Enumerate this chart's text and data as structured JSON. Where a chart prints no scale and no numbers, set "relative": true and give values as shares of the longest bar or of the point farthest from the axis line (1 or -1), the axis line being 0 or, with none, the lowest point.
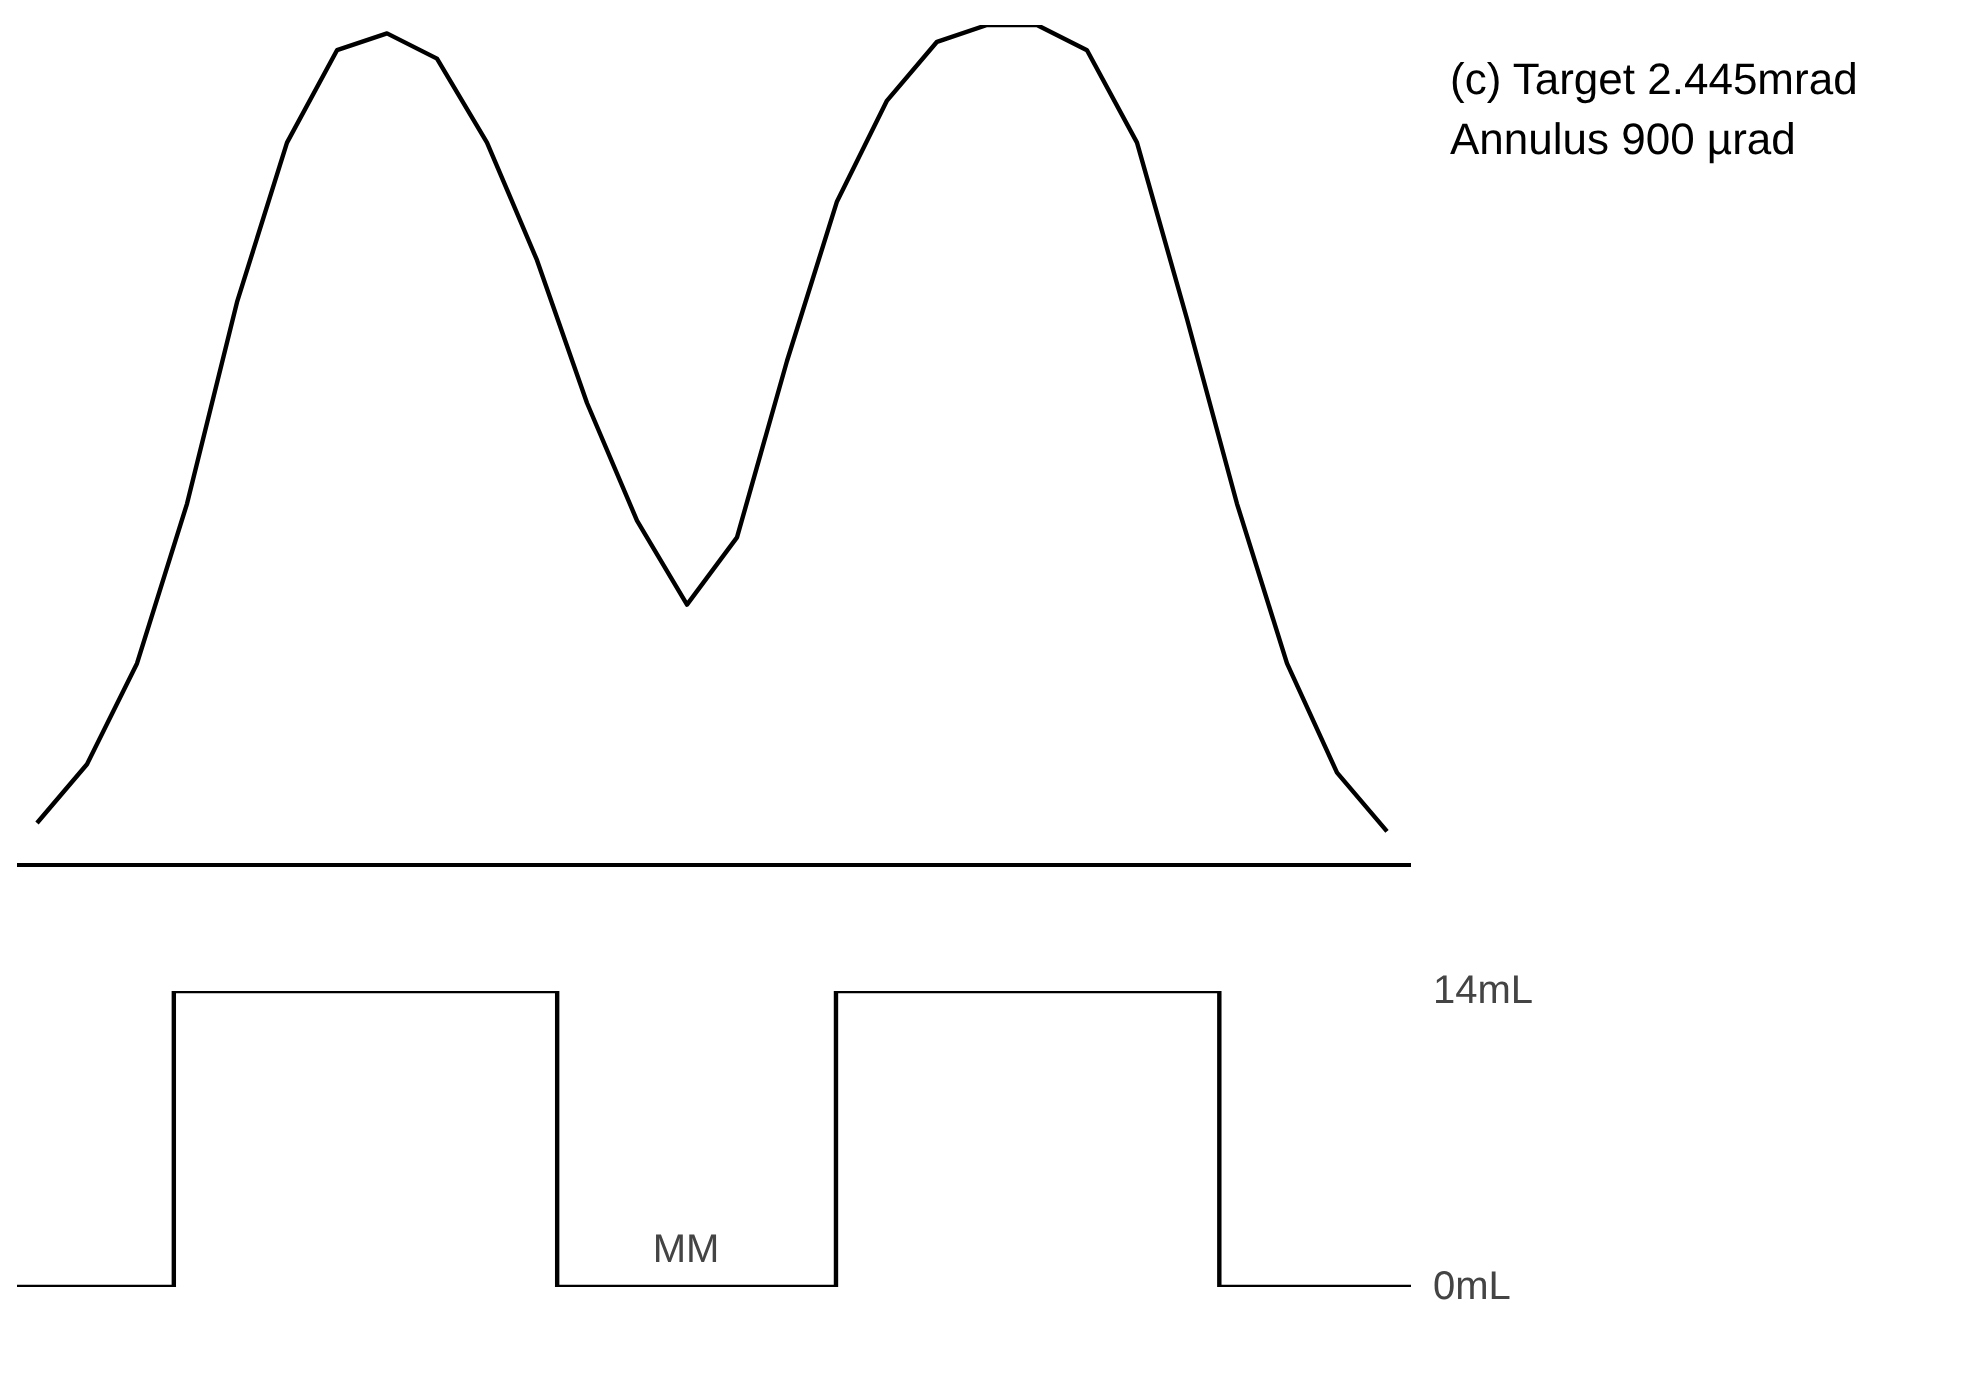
{
  "chart_data": [
    {
      "type": "line",
      "relative": true,
      "color": "#000000",
      "grid": false,
      "annotations": [
        "(c) Target  2.445mrad",
        "Annulus 900 µrad"
      ],
      "categories": [
        null,
        null,
        null,
        null,
        null,
        null,
        null,
        null,
        null,
        null,
        null,
        null,
        null,
        null,
        null,
        null,
        null,
        null,
        null,
        null,
        null,
        null,
        null,
        null,
        null,
        null,
        null,
        null
      ],
      "values": [
        0.05,
        0.12,
        0.24,
        0.43,
        0.67,
        0.86,
        0.97,
        0.99,
        0.96,
        0.86,
        0.72,
        0.55,
        0.41,
        0.31,
        0.39,
        0.6,
        0.79,
        0.91,
        0.98,
        1.0,
        1.0,
        0.97,
        0.86,
        0.65,
        0.43,
        0.24,
        0.11,
        0.04
      ]
    },
    {
      "type": "step",
      "color": "#000000",
      "grid": false,
      "annotations": [
        "MM"
      ],
      "ylim": [
        0,
        14
      ],
      "yticks": [
        {
          "value": 0,
          "label": "0mL"
        },
        {
          "value": 14,
          "label": "14mL"
        }
      ],
      "categories": [
        null,
        null,
        null,
        null,
        null,
        null,
        null,
        null,
        null,
        null,
        null,
        null,
        null,
        null,
        null,
        null,
        null,
        null,
        null,
        null,
        null,
        null,
        null,
        null,
        null,
        null,
        null,
        null,
        null,
        null,
        null,
        null,
        null,
        null,
        null,
        null,
        null,
        null,
        null,
        null,
        null
      ],
      "values": [
        0,
        0,
        0,
        0,
        0,
        14,
        14,
        14,
        14,
        14,
        14,
        14,
        14,
        14,
        14,
        14,
        0,
        0,
        0,
        0,
        0,
        0,
        0,
        0,
        14,
        14,
        14,
        14,
        14,
        14,
        14,
        14,
        14,
        14,
        14,
        0,
        0,
        0,
        0,
        0,
        0
      ]
    }
  ]
}
